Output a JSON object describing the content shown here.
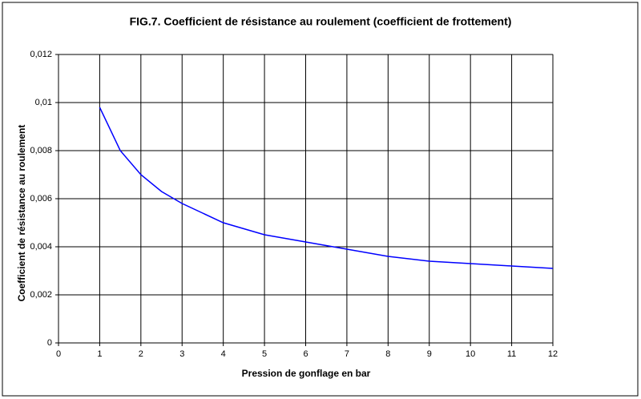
{
  "chart_data": {
    "type": "line",
    "title": "FIG.7. Coefficient de résistance au roulement (coefficient de frottement)",
    "xlabel": "Pression de gonflage en  bar",
    "ylabel": "Coefficient de résistance au roulement",
    "x": [
      1,
      1.5,
      2,
      2.5,
      3,
      3.5,
      4,
      5,
      6,
      7,
      8,
      9,
      10,
      11,
      12
    ],
    "values": [
      0.0098,
      0.008,
      0.007,
      0.0063,
      0.0058,
      0.0054,
      0.005,
      0.0045,
      0.0042,
      0.0039,
      0.0036,
      0.0034,
      0.0033,
      0.0032,
      0.0031
    ],
    "color": "#0000ff",
    "xlim": [
      0,
      12
    ],
    "xticks": [
      0,
      1,
      2,
      3,
      4,
      5,
      6,
      7,
      8,
      9,
      10,
      11,
      12
    ],
    "ylim": [
      0,
      0.012
    ],
    "yticks": [
      0,
      {
        "value": 0.002,
        "label": "0,002"
      },
      {
        "value": 0.004,
        "label": "0,004"
      },
      {
        "value": 0.006,
        "label": "0,006"
      },
      {
        "value": 0.008,
        "label": "0,008"
      },
      {
        "value": 0.01,
        "label": "0,01"
      },
      {
        "value": 0.012,
        "label": "0,012"
      }
    ],
    "grid": true
  }
}
